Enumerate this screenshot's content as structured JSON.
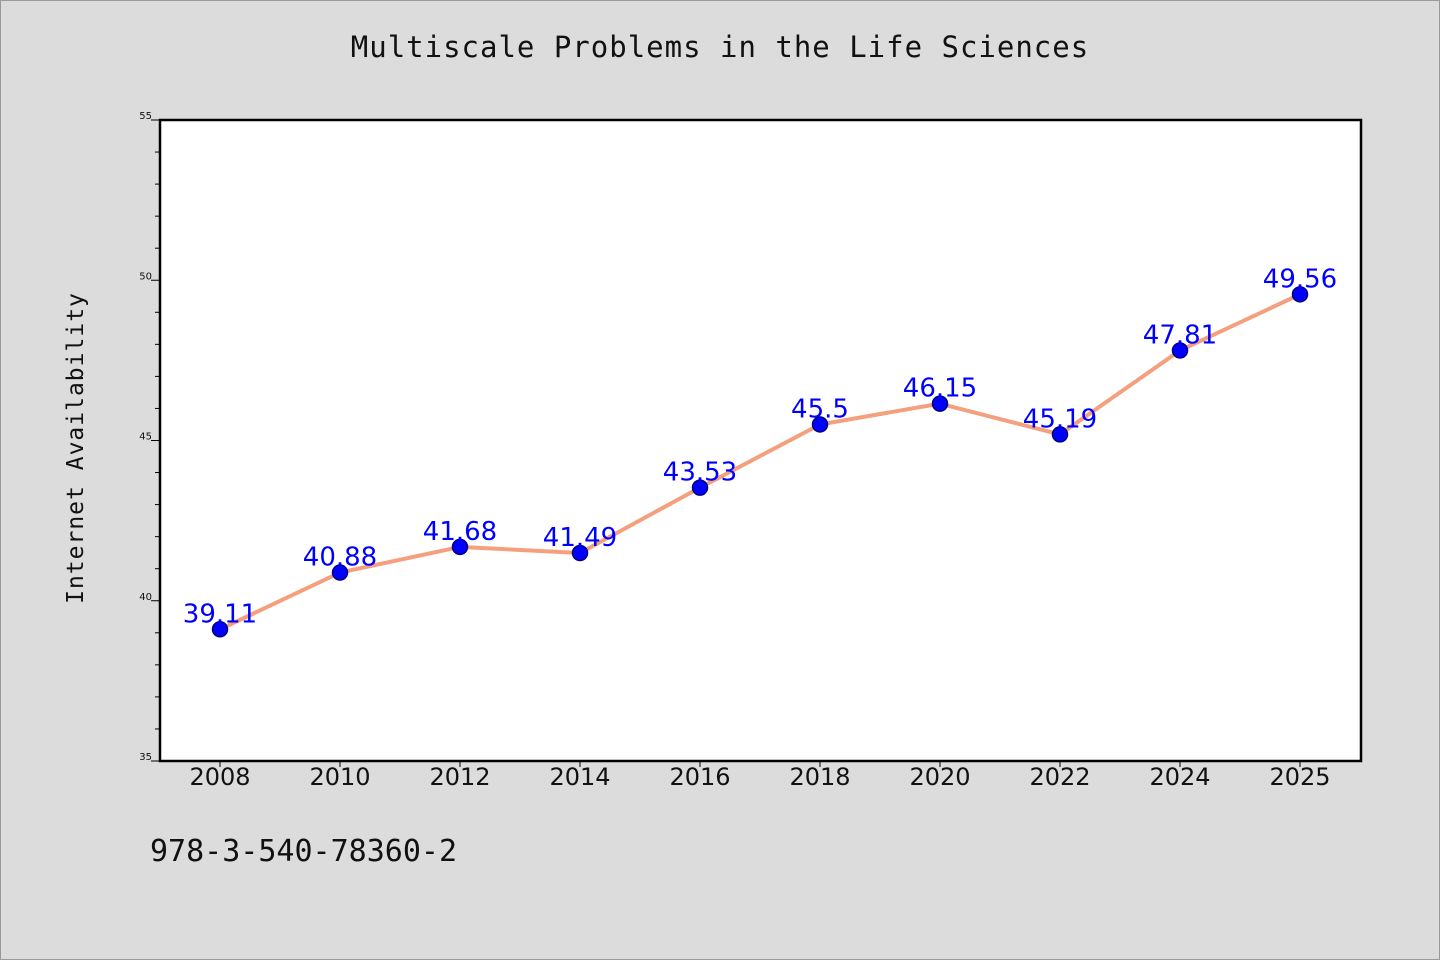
{
  "chart_data": {
    "type": "line",
    "title": "Multiscale Problems in the Life Sciences",
    "xlabel": "",
    "ylabel": "Internet Availability",
    "categories": [
      "2008",
      "2010",
      "2012",
      "2014",
      "2016",
      "2018",
      "2020",
      "2022",
      "2024",
      "2025"
    ],
    "series": [
      {
        "values": [
          39.11,
          40.88,
          41.68,
          41.49,
          43.53,
          45.5,
          46.15,
          45.19,
          47.81,
          49.56
        ],
        "data_labels": [
          "39.11",
          "40.88",
          "41.68",
          "41.49",
          "43.53",
          "45.5",
          "46.15",
          "45.19",
          "47.81",
          "49.56"
        ]
      }
    ],
    "ylim": [
      35,
      55
    ],
    "y_major_ticks": [
      35,
      40,
      45,
      50,
      55
    ],
    "y_minor_step": 1,
    "grid": false,
    "legend": "none",
    "colors": {
      "line": "#f4a07e",
      "marker": "#0000ff",
      "marker_edge": "#000080",
      "data_label": "#0000ff",
      "plot_background": "#ffffff",
      "figure_background": "#dcdcdc"
    }
  },
  "footnote": "978-3-540-78360-2"
}
